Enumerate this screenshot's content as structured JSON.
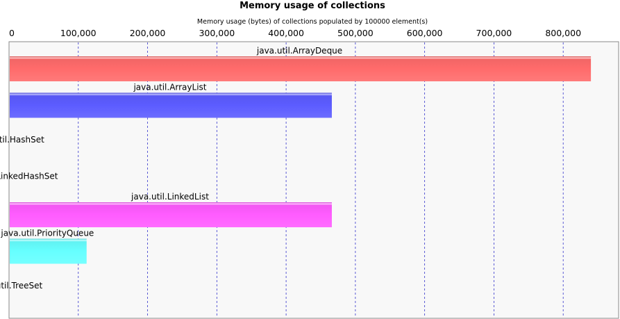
{
  "chart_data": {
    "type": "bar",
    "orientation": "horizontal",
    "title": "Memory usage of collections",
    "subtitle": "Memory usage (bytes) of collections populated by 100000 element(s)",
    "xlim": [
      0,
      880000
    ],
    "ticks": [
      {
        "value": 0,
        "label": "0"
      },
      {
        "value": 100000,
        "label": "100,000"
      },
      {
        "value": 200000,
        "label": "200,000"
      },
      {
        "value": 300000,
        "label": "300,000"
      },
      {
        "value": 400000,
        "label": "400,000"
      },
      {
        "value": 500000,
        "label": "500,000"
      },
      {
        "value": 600000,
        "label": "600,000"
      },
      {
        "value": 700000,
        "label": "700,000"
      },
      {
        "value": 800000,
        "label": "800,000"
      }
    ],
    "grid": true,
    "categories": [
      "java.util.ArrayDeque",
      "java.util.ArrayList",
      "java.util.HashSet",
      "java.util.LinkedHashSet",
      "java.util.LinkedList",
      "java.util.PriorityQueue",
      "java.util.TreeSet"
    ],
    "values": [
      839000,
      465000,
      null,
      null,
      465000,
      111000,
      null
    ],
    "colors": [
      "#ff6b6b",
      "#5c5cff",
      "#bbbbbb",
      "#bbbbbb",
      "#ff5cff",
      "#66ffff",
      "#bbbbbb"
    ],
    "plot_background": "#f8f8f8"
  }
}
